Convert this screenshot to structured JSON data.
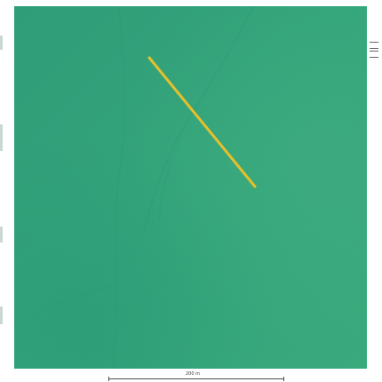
{
  "map": {
    "terrain_color": "#34a37a",
    "route_color": "#e7bf2b",
    "features": [
      "path-line",
      "terrain-ridges"
    ]
  },
  "scale": {
    "label": "200 m",
    "color": "#4b4b4b"
  }
}
